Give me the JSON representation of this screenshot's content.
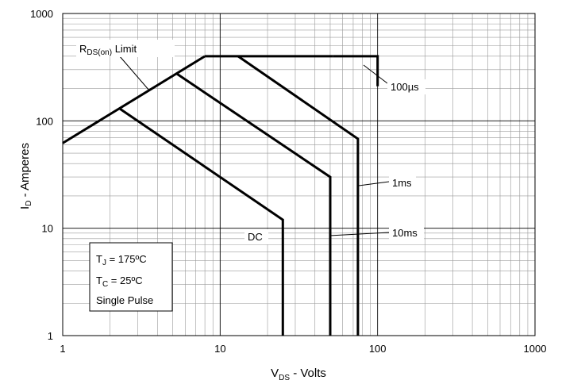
{
  "chart_data": {
    "type": "line",
    "title": "",
    "xlabel": {
      "main": "V",
      "sub": "DS",
      "rest": " - Volts"
    },
    "ylabel": {
      "main": "I",
      "sub": "D",
      "rest": " - Amperes"
    },
    "xscale": "log",
    "yscale": "log",
    "xlim": [
      1,
      1000
    ],
    "ylim": [
      1,
      1000
    ],
    "grid": true,
    "x_ticks": [
      {
        "value": 1,
        "label": "1"
      },
      {
        "value": 10,
        "label": "10"
      },
      {
        "value": 100,
        "label": "100"
      },
      {
        "value": 1000,
        "label": "1000"
      }
    ],
    "y_ticks": [
      {
        "value": 1,
        "label": "1"
      },
      {
        "value": 10,
        "label": "10"
      },
      {
        "value": 100,
        "label": "100"
      },
      {
        "value": 1000,
        "label": "1000"
      }
    ],
    "series": [
      {
        "name": "RDS(on) Limit",
        "points": [
          [
            1,
            62
          ],
          [
            8,
            400
          ]
        ]
      },
      {
        "name": "100µs",
        "points": [
          [
            52,
            400
          ],
          [
            100,
            400
          ],
          [
            100,
            210
          ]
        ]
      },
      {
        "name": "1ms",
        "points": [
          [
            13,
            400
          ],
          [
            75,
            68
          ],
          [
            75,
            1
          ]
        ]
      },
      {
        "name": "10ms",
        "points": [
          [
            5.3,
            275
          ],
          [
            50,
            30
          ],
          [
            50,
            1
          ]
        ]
      },
      {
        "name": "DC",
        "points": [
          [
            2.3,
            130
          ],
          [
            25,
            12
          ],
          [
            25,
            1
          ]
        ]
      },
      {
        "name": "",
        "points": [
          [
            8,
            400
          ],
          [
            52,
            400
          ]
        ]
      }
    ],
    "annotations": {
      "rds": {
        "main": "R",
        "sub": "DS(on)",
        "rest": " Limit"
      },
      "us100": "100µs",
      "ms1": "1ms",
      "ms10": "10ms",
      "dc": "DC"
    },
    "conditions": {
      "tj": {
        "main": "T",
        "sub": "J",
        "rest": " = 175ºC"
      },
      "tc": {
        "main": "T",
        "sub": "C",
        "rest": " = 25ºC"
      },
      "pulse": "Single Pulse"
    },
    "colors": {
      "line": "#000000",
      "grid": "#9a9a9a",
      "major_grid": "#000000",
      "background": "#ffffff"
    }
  }
}
